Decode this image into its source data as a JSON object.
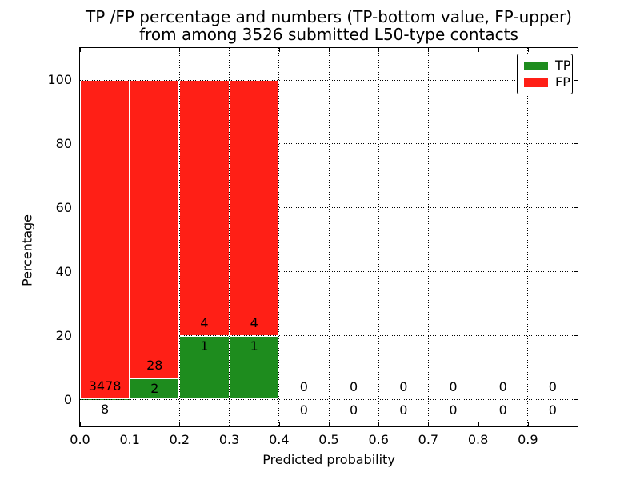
{
  "chart_data": {
    "type": "bar",
    "stacked": true,
    "normalized_to_percent": true,
    "title": "TP /FP percentage and numbers (TP-bottom value, FP-upper) from among 3526 submitted L50-type contacts",
    "title_line1": "TP /FP percentage and numbers (TP-bottom value, FP-upper)",
    "title_line2": "from among 3526 submitted L50-type contacts",
    "xlabel": "Predicted probability",
    "ylabel": "Percentage",
    "xlim": [
      0.0,
      1.0
    ],
    "ylim_shown": [
      -8,
      110
    ],
    "grid": true,
    "grid_style": "dotted",
    "xticks": [
      "0.0",
      "0.1",
      "0.2",
      "0.3",
      "0.4",
      "0.5",
      "0.6",
      "0.7",
      "0.8",
      "0.9"
    ],
    "yticks": [
      "0",
      "20",
      "40",
      "60",
      "80",
      "100"
    ],
    "ytick_values": [
      0,
      20,
      40,
      60,
      80,
      100
    ],
    "series": [
      {
        "name": "TP",
        "color": "#1e8c1e"
      },
      {
        "name": "FP",
        "color": "#ff1f16"
      }
    ],
    "legend": {
      "position": "upper right",
      "entries": [
        "TP",
        "FP"
      ]
    },
    "bin_width": 0.1,
    "bins": [
      {
        "x0": 0.0,
        "x1": 0.1,
        "tp": 8,
        "fp": 3478
      },
      {
        "x0": 0.1,
        "x1": 0.2,
        "tp": 2,
        "fp": 28
      },
      {
        "x0": 0.2,
        "x1": 0.3,
        "tp": 1,
        "fp": 4
      },
      {
        "x0": 0.3,
        "x1": 0.4,
        "tp": 1,
        "fp": 4
      },
      {
        "x0": 0.4,
        "x1": 0.5,
        "tp": 0,
        "fp": 0
      },
      {
        "x0": 0.5,
        "x1": 0.6,
        "tp": 0,
        "fp": 0
      },
      {
        "x0": 0.6,
        "x1": 0.7,
        "tp": 0,
        "fp": 0
      },
      {
        "x0": 0.7,
        "x1": 0.8,
        "tp": 0,
        "fp": 0
      },
      {
        "x0": 0.8,
        "x1": 0.9,
        "tp": 0,
        "fp": 0
      },
      {
        "x0": 0.9,
        "x1": 1.0,
        "tp": 0,
        "fp": 0
      }
    ],
    "annotation_rule": "TP count printed below top of TP bar, FP count printed above it"
  }
}
